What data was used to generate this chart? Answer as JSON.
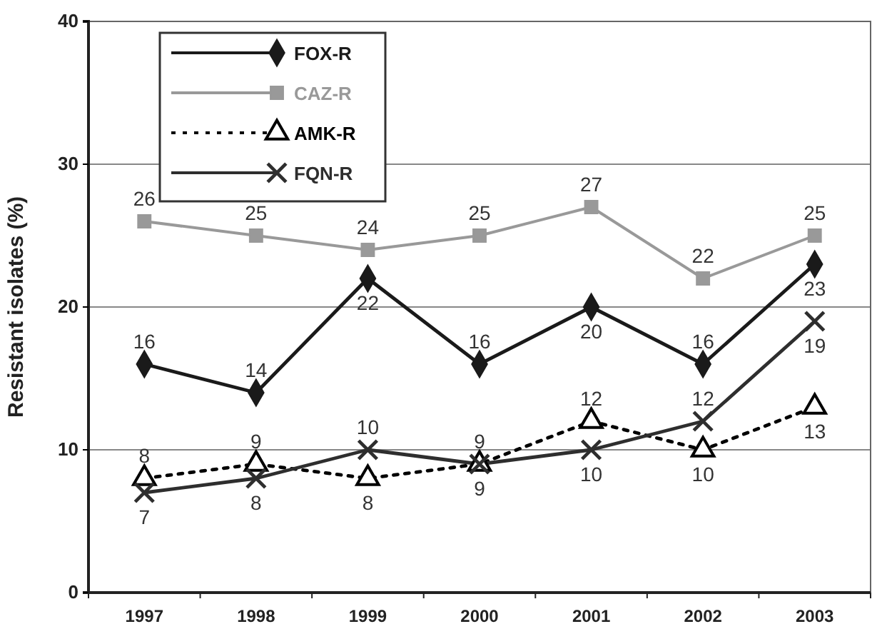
{
  "chart_data": {
    "type": "line",
    "ylabel": "Resistant isolates (%)",
    "categories": [
      "1997",
      "1998",
      "1999",
      "2000",
      "2001",
      "2002",
      "2003"
    ],
    "series": [
      {
        "name": "FOX-R",
        "color": "#1a1a1a",
        "marker": "diamond",
        "line_style": "solid",
        "values": [
          16,
          14,
          22,
          16,
          20,
          16,
          23
        ]
      },
      {
        "name": "CAZ-R",
        "color": "#999999",
        "marker": "square",
        "line_style": "solid",
        "values": [
          26,
          25,
          24,
          25,
          27,
          22,
          25
        ]
      },
      {
        "name": "AMK-R",
        "color": "#000000",
        "marker": "triangle",
        "line_style": "dotted",
        "values": [
          8,
          9,
          8,
          9,
          12,
          10,
          13
        ]
      },
      {
        "name": "FQN-R",
        "color": "#2e2e2e",
        "marker": "cross",
        "line_style": "solid",
        "values": [
          7,
          8,
          10,
          9,
          10,
          12,
          19
        ]
      }
    ],
    "ylim": [
      0,
      40
    ],
    "yticks": [
      0,
      10,
      20,
      30,
      40
    ],
    "grid": "y",
    "legend": "top left",
    "data_labels": true
  }
}
